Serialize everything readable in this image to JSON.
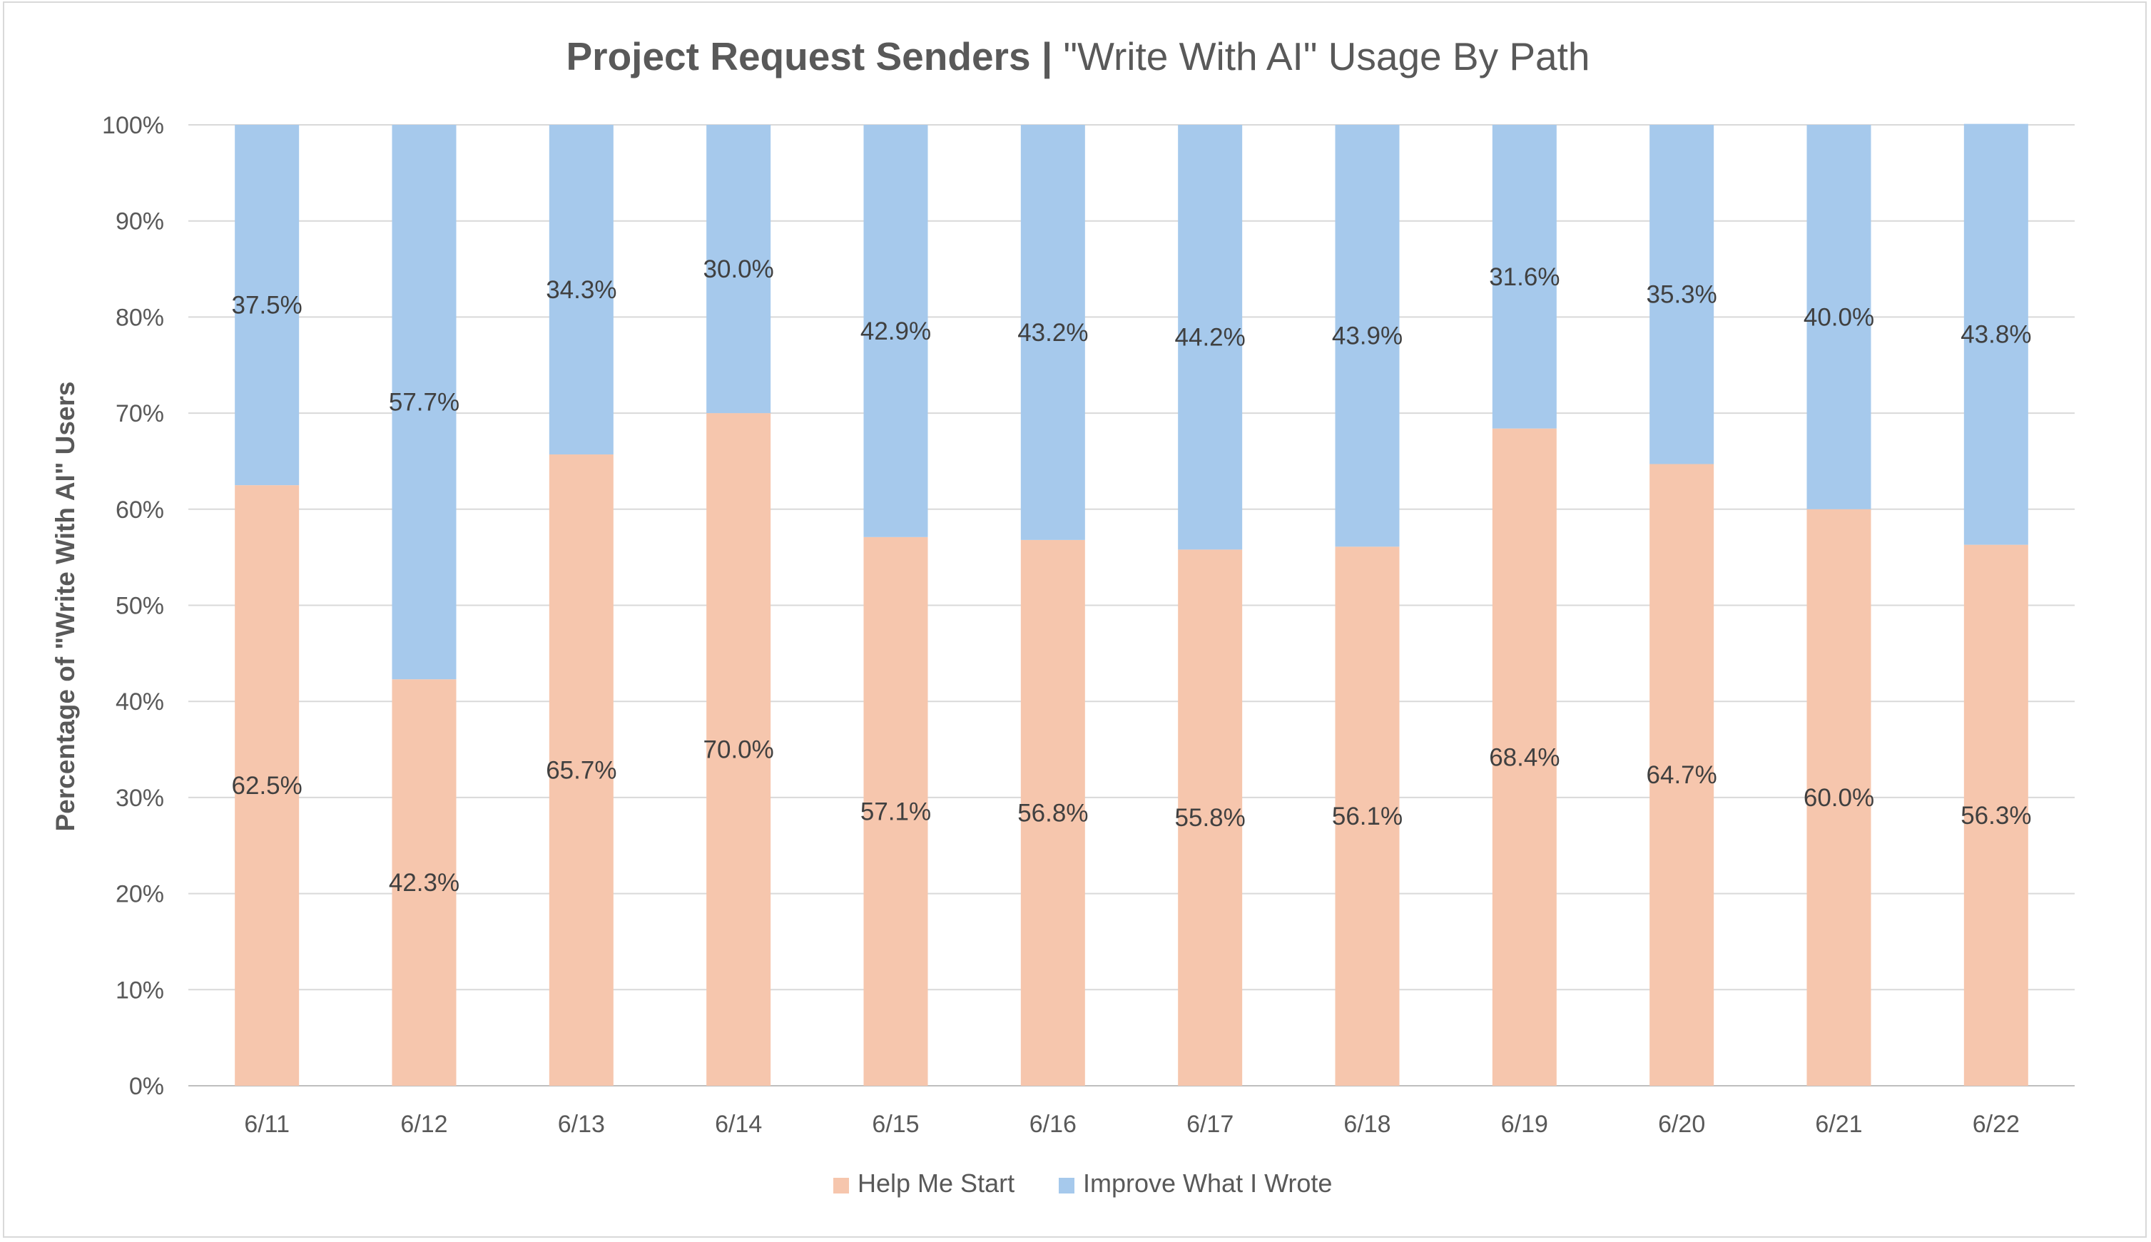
{
  "chart_data": {
    "type": "bar",
    "stacked": true,
    "percent_stacked": true,
    "title": {
      "bold_part": "Project Request Senders",
      "separator": "|",
      "regular_part": "\"Write With AI\" Usage By Path"
    },
    "ylabel": "Percentage of \"Write With AI\" Users",
    "xlabel": "",
    "ylim": [
      0,
      100
    ],
    "y_ticks": [
      "0%",
      "10%",
      "20%",
      "30%",
      "40%",
      "50%",
      "60%",
      "70%",
      "80%",
      "90%",
      "100%"
    ],
    "grid": true,
    "legend_position": "bottom",
    "categories": [
      "6/11",
      "6/12",
      "6/13",
      "6/14",
      "6/15",
      "6/16",
      "6/17",
      "6/18",
      "6/19",
      "6/20",
      "6/21",
      "6/22"
    ],
    "series": [
      {
        "name": "Help Me Start",
        "color": "#F6C6AD",
        "values": [
          62.5,
          42.3,
          65.7,
          70.0,
          57.1,
          56.8,
          55.8,
          56.1,
          68.4,
          64.7,
          60.0,
          56.3
        ],
        "labels": [
          "62.5%",
          "42.3%",
          "65.7%",
          "70.0%",
          "57.1%",
          "56.8%",
          "55.8%",
          "56.1%",
          "68.4%",
          "64.7%",
          "60.0%",
          "56.3%"
        ]
      },
      {
        "name": "Improve What I Wrote",
        "color": "#A6C9EC",
        "values": [
          37.5,
          57.7,
          34.3,
          30.0,
          42.9,
          43.2,
          44.2,
          43.9,
          31.6,
          35.3,
          40.0,
          43.8
        ],
        "labels": [
          "37.5%",
          "57.7%",
          "34.3%",
          "30.0%",
          "42.9%",
          "43.2%",
          "44.2%",
          "43.9%",
          "31.6%",
          "35.3%",
          "40.0%",
          "43.8%"
        ]
      }
    ]
  }
}
